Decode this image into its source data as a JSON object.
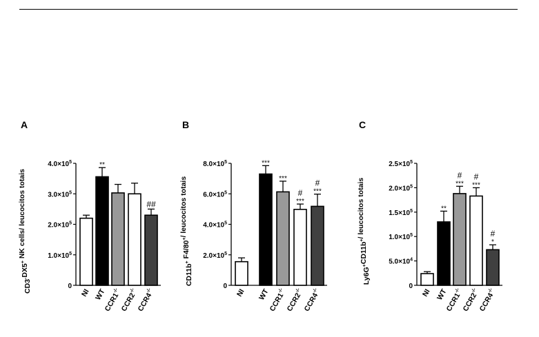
{
  "chart_data": [
    {
      "type": "bar",
      "panel": "A",
      "ylabel": "CD3⁻DX5⁺ NK cells/ leucocitos totais",
      "ylabel_parts": [
        [
          "CD3",
          ""
        ],
        [
          "-",
          "sup"
        ],
        [
          "DX5",
          ""
        ],
        [
          "+",
          "sup"
        ],
        [
          " NK cells/ leucocitos totais",
          ""
        ]
      ],
      "ylim": [
        0,
        400000
      ],
      "yticks": [
        0,
        100000,
        200000,
        300000,
        400000
      ],
      "ytick_labels": [
        [
          "0",
          ""
        ],
        [
          "1.0×10",
          "5"
        ],
        [
          "2.0×10",
          "5"
        ],
        [
          "3.0×10",
          "5"
        ],
        [
          "4.0×10",
          "5"
        ]
      ],
      "categories": [
        [
          "NI",
          ""
        ],
        [
          "WT",
          ""
        ],
        [
          "CCR1",
          "-/-"
        ],
        [
          "CCR2",
          "-/-"
        ],
        [
          "CCR4",
          "-/-"
        ]
      ],
      "values": [
        220000,
        356000,
        303000,
        300000,
        230000
      ],
      "errors": [
        10000,
        30000,
        28000,
        35000,
        20000
      ],
      "fills": [
        "#ffffff",
        "#000000",
        "#999999",
        "#ffffff",
        "#404040"
      ],
      "annotations": [
        [
          ""
        ],
        [
          "**"
        ],
        [
          ""
        ],
        [
          ""
        ],
        [
          "##"
        ]
      ]
    },
    {
      "type": "bar",
      "panel": "B",
      "ylabel": "CD11b⁺ F4/80⁺/ leucocitos totais",
      "ylabel_parts": [
        [
          "CD11b",
          ""
        ],
        [
          "+",
          "sup"
        ],
        [
          " F4/80",
          ""
        ],
        [
          "+",
          "sup"
        ],
        [
          "/ leucocitos totais",
          ""
        ]
      ],
      "ylim": [
        0,
        800000
      ],
      "yticks": [
        0,
        200000,
        400000,
        600000,
        800000
      ],
      "ytick_labels": [
        [
          "0",
          ""
        ],
        [
          "2.0×10",
          "5"
        ],
        [
          "4.0×10",
          "5"
        ],
        [
          "6.0×10",
          "5"
        ],
        [
          "8.0×10",
          "5"
        ]
      ],
      "categories": [
        [
          "NI",
          ""
        ],
        [
          "WT",
          ""
        ],
        [
          "CCR1",
          "-/-"
        ],
        [
          "CCR2",
          "-/-"
        ],
        [
          "CCR4",
          "-/-"
        ]
      ],
      "values": [
        155000,
        730000,
        613000,
        498000,
        518000
      ],
      "errors": [
        25000,
        55000,
        70000,
        35000,
        80000
      ],
      "fills": [
        "#ffffff",
        "#000000",
        "#999999",
        "#ffffff",
        "#404040"
      ],
      "annotations": [
        [
          ""
        ],
        [
          "***"
        ],
        [
          "***"
        ],
        [
          "#",
          "***"
        ],
        [
          "#",
          "***"
        ]
      ]
    },
    {
      "type": "bar",
      "panel": "C",
      "ylabel": "Ly6G⁺CD11b⁺/ leucocitos totais",
      "ylabel_parts": [
        [
          "Ly6G",
          ""
        ],
        [
          "+",
          "sup"
        ],
        [
          "CD11b",
          ""
        ],
        [
          "+",
          "sup"
        ],
        [
          "/ leucocitos totais",
          ""
        ]
      ],
      "ylim": [
        0,
        250000
      ],
      "yticks": [
        0,
        50000,
        100000,
        150000,
        200000,
        250000
      ],
      "ytick_labels": [
        [
          "0",
          ""
        ],
        [
          "5.0×10",
          "4"
        ],
        [
          "1.0×10",
          "5"
        ],
        [
          "1.5×10",
          "5"
        ],
        [
          "2.0×10",
          "5"
        ],
        [
          "2.5×10",
          "5"
        ]
      ],
      "categories": [
        [
          "NI",
          ""
        ],
        [
          "WT",
          ""
        ],
        [
          "CCR1",
          "-/-"
        ],
        [
          "CCR2",
          "-/-"
        ],
        [
          "CCR4",
          "-/-"
        ]
      ],
      "values": [
        24000,
        130000,
        188000,
        183000,
        73000
      ],
      "errors": [
        4000,
        22000,
        15000,
        17000,
        10000
      ],
      "fills": [
        "#ffffff",
        "#000000",
        "#999999",
        "#ffffff",
        "#404040"
      ],
      "annotations": [
        [
          ""
        ],
        [
          "**"
        ],
        [
          "#",
          "***"
        ],
        [
          "#",
          "***"
        ],
        [
          "#",
          "*"
        ]
      ]
    }
  ]
}
